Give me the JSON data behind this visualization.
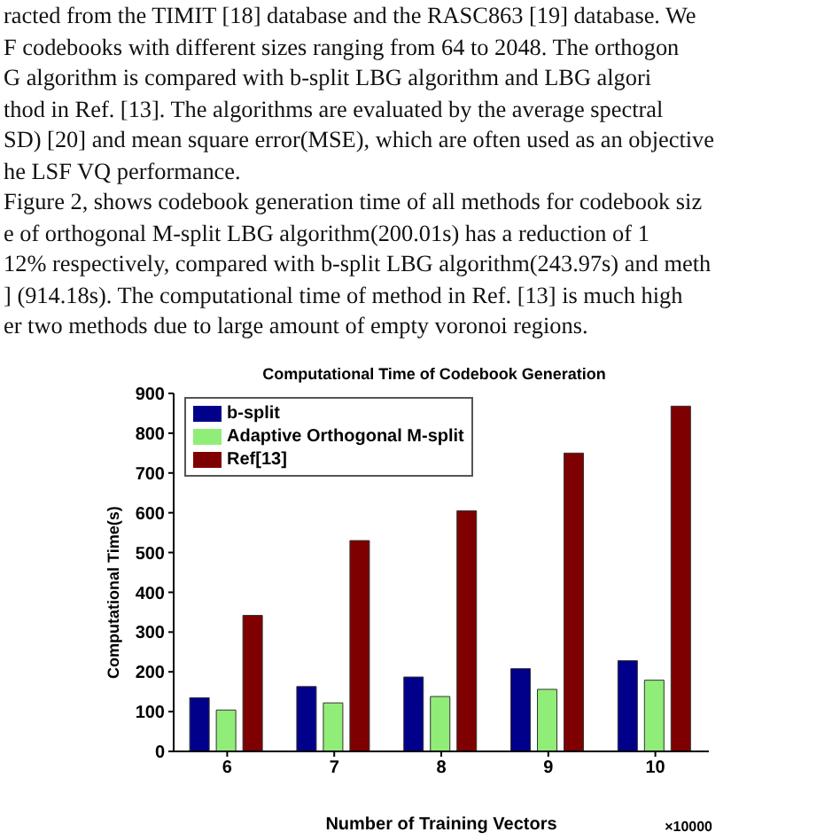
{
  "chart_data": {
    "type": "bar",
    "title": "Computational Time of Codebook Generation",
    "xlabel": "Number of Training Vectors",
    "ylabel": "Computational Time(s)",
    "categories": [
      "6",
      "7",
      "8",
      "9",
      "10"
    ],
    "series": [
      {
        "name": "b-split",
        "color": "#00008b",
        "values": [
          135,
          163,
          187,
          208,
          228
        ]
      },
      {
        "name": "Adaptive Orthogonal M-split",
        "color": "#90ee78",
        "values": [
          104,
          122,
          138,
          156,
          179
        ]
      },
      {
        "name": "Ref[13]",
        "color": "#7f0000",
        "values": [
          342,
          530,
          605,
          750,
          868
        ]
      }
    ],
    "ylim": [
      0,
      900
    ],
    "yticks": [
      0,
      100,
      200,
      300,
      400,
      500,
      600,
      700,
      800,
      900
    ],
    "grid": false,
    "legend": "top left",
    "annotations": [
      "×10000",
      "racted from the TIMIT [18] database and the RASC863 [19] database. We",
      "F codebooks with different sizes ranging from 64 to 2048. The orthogon",
      "G algorithm is compared with b-split LBG algorithm and LBG algori",
      "thod in Ref. [13]. The algorithms are evaluated by the average spectral",
      "SD) [20] and mean square error(MSE), which are often used as an objective",
      "he LSF VQ performance.",
      "Figure 2, shows codebook generation time of all methods for codebook siz",
      "e of orthogonal M-split LBG algorithm(200.01s) has a reduction of 1",
      "12% respectively, compared with b-split LBG algorithm(243.97s) and meth",
      "] (914.18s). The computational time of method in Ref. [13] is much high",
      "er two methods due to large amount of empty voronoi regions."
    ]
  }
}
